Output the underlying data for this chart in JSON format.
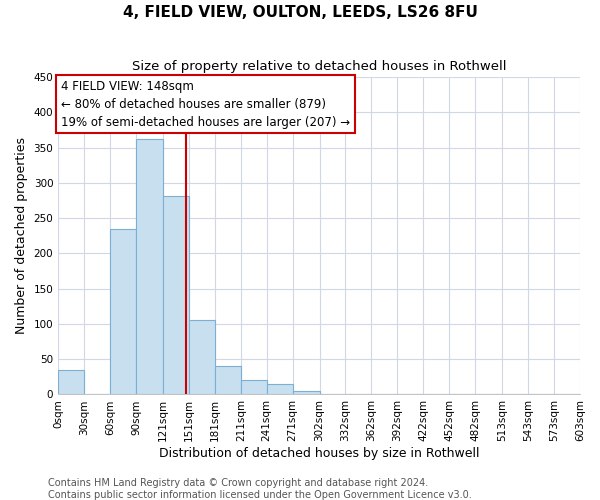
{
  "title": "4, FIELD VIEW, OULTON, LEEDS, LS26 8FU",
  "subtitle": "Size of property relative to detached houses in Rothwell",
  "xlabel": "Distribution of detached houses by size in Rothwell",
  "ylabel": "Number of detached properties",
  "bar_edges": [
    0,
    30,
    60,
    90,
    121,
    151,
    181,
    211,
    241,
    271,
    302,
    332,
    362,
    392,
    422,
    452,
    482,
    513,
    543,
    573,
    603
  ],
  "bar_heights": [
    35,
    0,
    235,
    362,
    281,
    105,
    41,
    20,
    15,
    5,
    0,
    0,
    0,
    0,
    0,
    0,
    0,
    0,
    0,
    0
  ],
  "bar_color": "#c8dff0",
  "bar_edge_color": "#7bafd4",
  "property_line_x": 148,
  "property_line_color": "#cc0000",
  "ylim": [
    0,
    450
  ],
  "yticks": [
    0,
    50,
    100,
    150,
    200,
    250,
    300,
    350,
    400,
    450
  ],
  "xtick_labels": [
    "0sqm",
    "30sqm",
    "60sqm",
    "90sqm",
    "121sqm",
    "151sqm",
    "181sqm",
    "211sqm",
    "241sqm",
    "271sqm",
    "302sqm",
    "332sqm",
    "362sqm",
    "392sqm",
    "422sqm",
    "452sqm",
    "482sqm",
    "513sqm",
    "543sqm",
    "573sqm",
    "603sqm"
  ],
  "annotation_title": "4 FIELD VIEW: 148sqm",
  "annotation_line1": "← 80% of detached houses are smaller (879)",
  "annotation_line2": "19% of semi-detached houses are larger (207) →",
  "annotation_box_color": "#ffffff",
  "annotation_box_edge_color": "#cc0000",
  "footnote1": "Contains HM Land Registry data © Crown copyright and database right 2024.",
  "footnote2": "Contains public sector information licensed under the Open Government Licence v3.0.",
  "bg_color": "#ffffff",
  "plot_bg_color": "#ffffff",
  "grid_color": "#d0d8e8",
  "title_fontsize": 11,
  "subtitle_fontsize": 9.5,
  "tick_fontsize": 7.5,
  "label_fontsize": 9,
  "footnote_fontsize": 7
}
